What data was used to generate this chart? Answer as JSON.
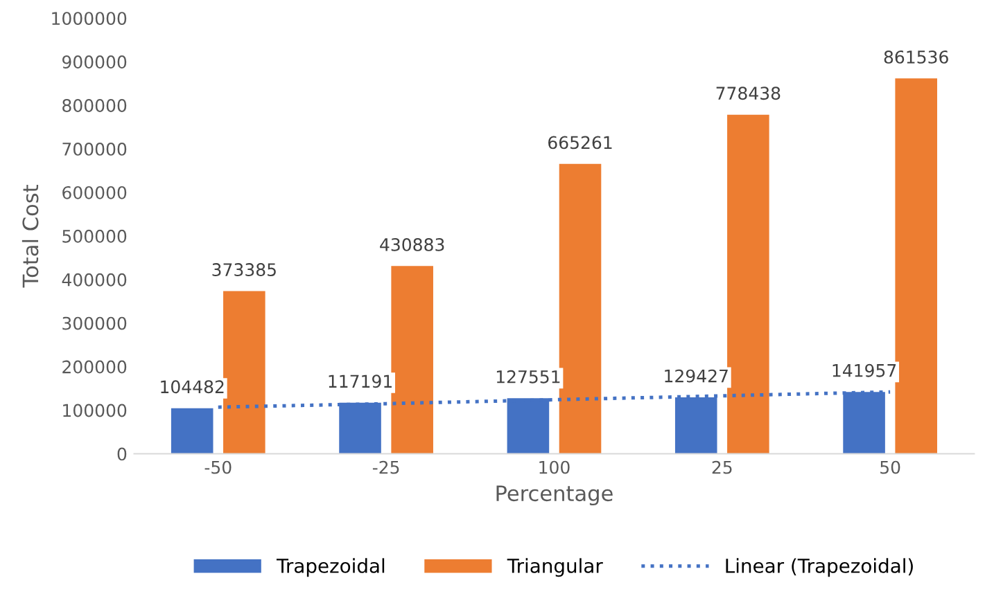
{
  "chart_data": {
    "type": "bar",
    "xlabel": "Percentage",
    "ylabel": "Total Cost",
    "categories": [
      "-50",
      "-25",
      "100",
      "25",
      "50"
    ],
    "series": [
      {
        "name": "Trapezoidal",
        "color": "#4472c4",
        "values": [
          104482,
          117191,
          127551,
          129427,
          141957
        ],
        "value_labels": [
          "104482",
          "117191",
          "127551",
          "129427",
          "141957"
        ]
      },
      {
        "name": "Triangular",
        "color": "#ed7d31",
        "values": [
          373385,
          430883,
          665261,
          778438,
          861536
        ],
        "value_labels": [
          "373385",
          "430883",
          "665261",
          "778438",
          "861536"
        ]
      },
      {
        "name": "Linear (Trapezoidal)",
        "type": "line",
        "color": "#4472c4",
        "line_style": "dotted",
        "x": [
          "-50",
          "-25",
          "100",
          "25",
          "50"
        ],
        "values": [
          107000,
          115000,
          124000,
          133000,
          142000
        ]
      }
    ],
    "ylim": [
      0,
      1000000
    ],
    "yticks": [
      0,
      100000,
      200000,
      300000,
      400000,
      500000,
      600000,
      700000,
      800000,
      900000,
      1000000
    ],
    "grid": false,
    "legend": "bottom"
  }
}
